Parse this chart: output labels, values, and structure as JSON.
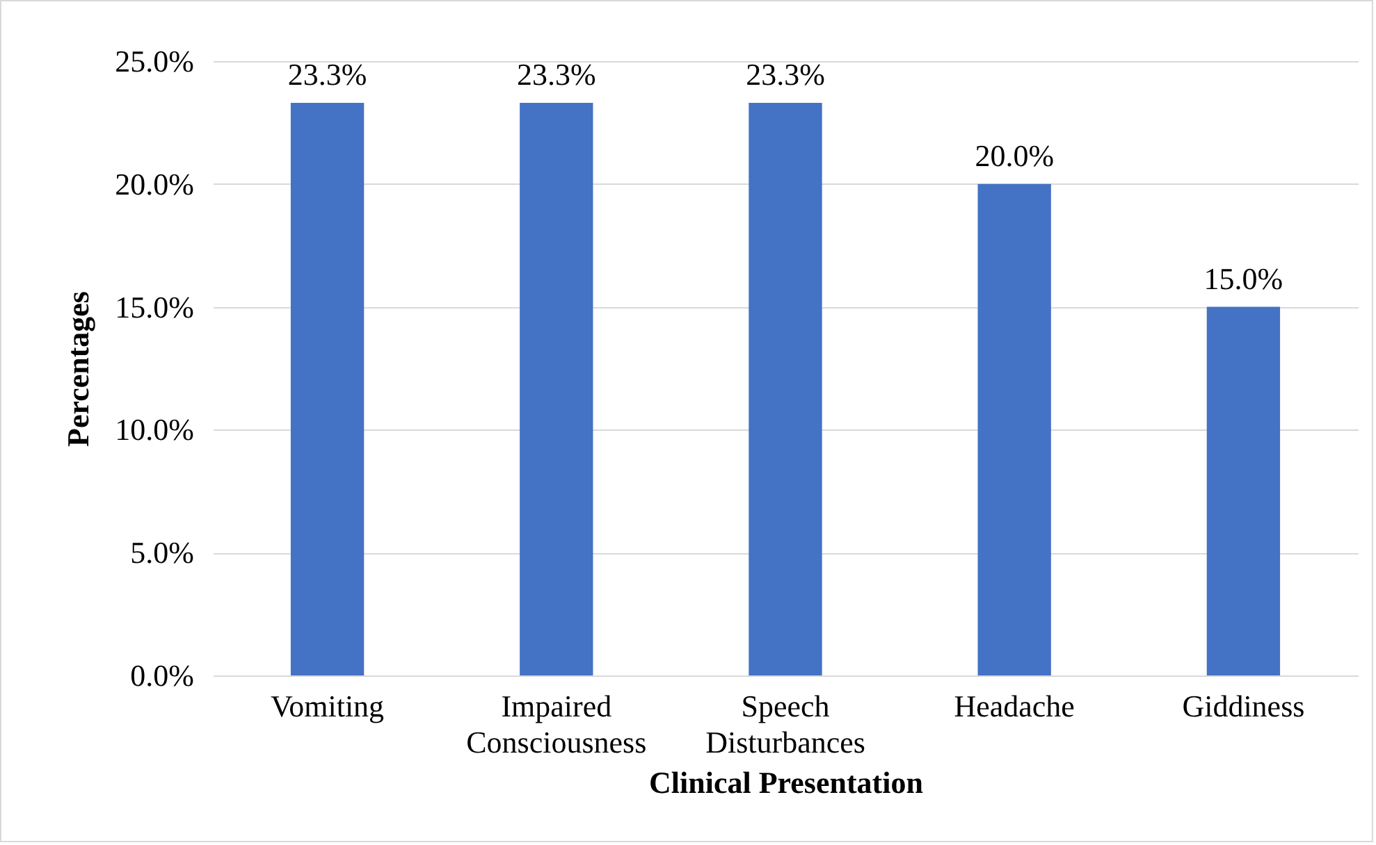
{
  "chart_data": {
    "type": "bar",
    "xlabel": "Clinical Presentation",
    "ylabel": "Percentages",
    "categories": [
      "Vomiting",
      "Impaired Consciousness",
      "Speech Disturbances",
      "Headache",
      "Giddiness"
    ],
    "values": [
      23.3,
      23.3,
      23.3,
      20.0,
      15.0
    ],
    "value_labels": [
      "23.3%",
      "23.3%",
      "23.3%",
      "20.0%",
      "15.0%"
    ],
    "color": "#4472c4",
    "ylim": [
      0,
      25
    ],
    "yticks": [
      {
        "value": 0,
        "label": "0.0%"
      },
      {
        "value": 5,
        "label": "5.0%"
      },
      {
        "value": 10,
        "label": "10.0%"
      },
      {
        "value": 15,
        "label": "15.0%"
      },
      {
        "value": 20,
        "label": "20.0%"
      },
      {
        "value": 25,
        "label": "25.0%"
      }
    ],
    "grid": "y"
  }
}
